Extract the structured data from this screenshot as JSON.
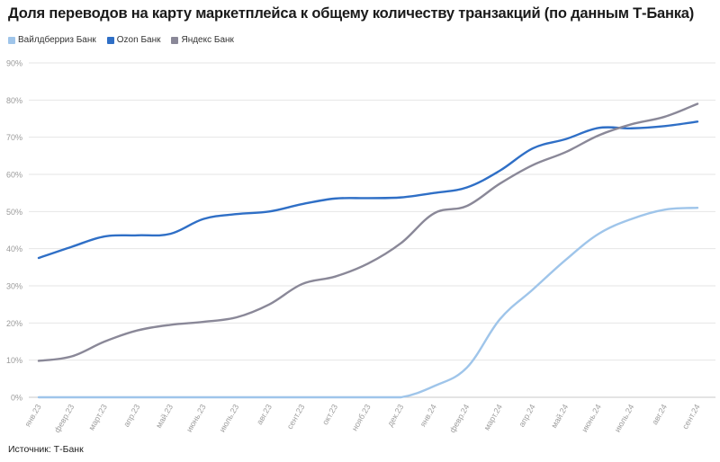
{
  "title": "Доля переводов на карту маркетплейса к общему количеству транзакций (по данным Т-Банка)",
  "source": "Источник: Т-Банк",
  "chart_data": {
    "type": "line",
    "title": "Доля переводов на карту маркетплейса к общему количеству транзакций (по данным Т-Банка)",
    "xlabel": "",
    "ylabel": "",
    "ylim": [
      0,
      90
    ],
    "yticks": [
      "0%",
      "10%",
      "20%",
      "30%",
      "40%",
      "50%",
      "60%",
      "70%",
      "80%",
      "90%"
    ],
    "grid": "horizontal",
    "legend_position": "top-left",
    "categories": [
      "янв.23",
      "февр.23",
      "март.23",
      "апр.23",
      "май.23",
      "июнь.23",
      "июль.23",
      "авг.23",
      "сент.23",
      "окт.23",
      "нояб.23",
      "дек.23",
      "янв.24",
      "февр.24",
      "март.24",
      "апр.24",
      "май.24",
      "июнь.24",
      "июль.24",
      "авг.24",
      "сент.24"
    ],
    "series": [
      {
        "name": "Вайлдберриз Банк",
        "color": "#9fc5ea",
        "values": [
          0,
          0,
          0,
          0,
          0,
          0,
          0,
          0,
          0,
          0,
          0,
          0,
          3,
          8,
          21,
          29,
          37,
          44,
          48,
          50.5,
          51
        ]
      },
      {
        "name": "Ozon Банк",
        "color": "#2f6fc6",
        "values": [
          37.5,
          40.5,
          43.3,
          43.6,
          44,
          48,
          49.3,
          50,
          52,
          53.5,
          53.6,
          53.8,
          55,
          56.5,
          61,
          67,
          69.5,
          72.5,
          72.4,
          73,
          74.2
        ]
      },
      {
        "name": "Яндекс Банк",
        "color": "#8a8898",
        "values": [
          9.8,
          11,
          15,
          18,
          19.5,
          20.3,
          21.5,
          25,
          30.5,
          32.5,
          36,
          41.5,
          49.5,
          51.5,
          57.5,
          62.5,
          66,
          70.5,
          73.5,
          75.5,
          79
        ]
      }
    ]
  }
}
